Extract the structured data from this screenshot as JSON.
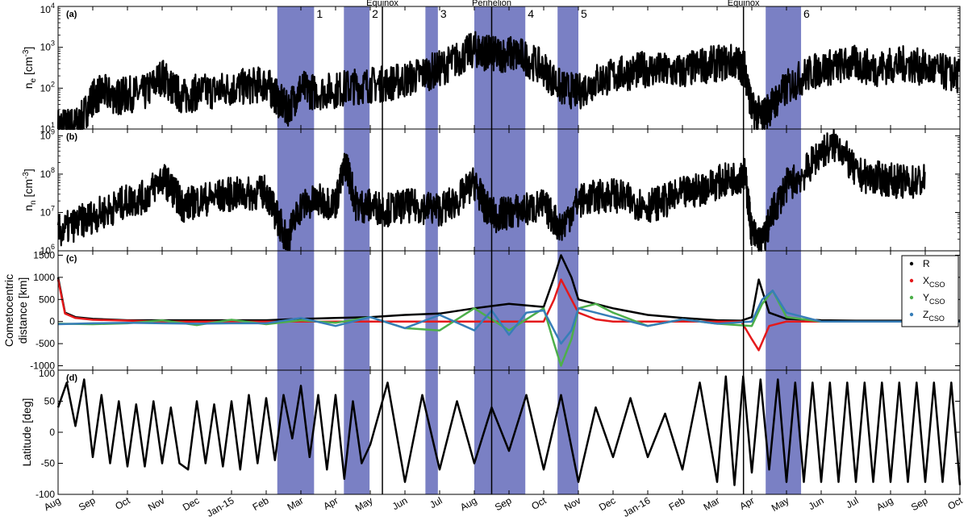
{
  "chart_data": {
    "type": "multi-panel time series",
    "x_axis": {
      "tick_labels": [
        "Aug",
        "Sep",
        "Oct",
        "Nov",
        "Dec",
        "Jan-15",
        "Feb",
        "Mar",
        "Apr",
        "May",
        "Jun",
        "Jul",
        "Aug",
        "Sep",
        "Oct",
        "Nov",
        "Dec",
        "Jan-16",
        "Feb",
        "Mar",
        "Apr",
        "May",
        "Jun",
        "Jul",
        "Aug",
        "Sep",
        "Oct"
      ],
      "range": [
        "Aug 2014",
        "Oct 2016"
      ]
    },
    "shaded_intervals": [
      {
        "label": "1",
        "start_month": 6.32,
        "end_month": 7.38
      },
      {
        "label": "2",
        "start_month": 8.24,
        "end_month": 8.98
      },
      {
        "label": "3",
        "start_month": 10.59,
        "end_month": 10.95
      },
      {
        "label": "4",
        "start_month": 12.0,
        "end_month": 13.47
      },
      {
        "label": "5",
        "start_month": 14.4,
        "end_month": 15.0
      },
      {
        "label": "6",
        "start_month": 20.4,
        "end_month": 21.42
      }
    ],
    "vertical_lines": [
      {
        "label": "Equinox",
        "month": 9.35
      },
      {
        "label": "Perihelion",
        "month": 12.5
      },
      {
        "label": "Equinox",
        "month": 19.76
      }
    ],
    "panels": [
      {
        "id": "a",
        "letter": "(a)",
        "ylabel": "n",
        "ylabel_sub": "e",
        "ylabel_unit": "[cm",
        "ylabel_sup": "-3",
        "ylabel_end": "]",
        "scale": "log",
        "ylim": [
          10,
          10000
        ],
        "tick_labels": [
          {
            "base": "10",
            "exp": "1",
            "v": 10
          },
          {
            "base": "10",
            "exp": "2",
            "v": 100
          },
          {
            "base": "10",
            "exp": "3",
            "v": 1000
          },
          {
            "base": "10",
            "exp": "4",
            "v": 10000
          }
        ],
        "series": [
          {
            "color": "#000000",
            "x_months": [
              0,
              0.3,
              0.6,
              1.0,
              1.3,
              1.7,
              2.0,
              2.5,
              3.0,
              3.3,
              3.6,
              4.0,
              4.5,
              5.0,
              5.5,
              6.0,
              6.3,
              6.6,
              7.0,
              7.4,
              8.0,
              8.5,
              9.0,
              9.5,
              10.0,
              10.5,
              11.0,
              11.5,
              12.0,
              12.3,
              12.6,
              13.0,
              13.4,
              14.0,
              14.5,
              15.0,
              15.5,
              16.0,
              16.5,
              17.0,
              17.5,
              18.0,
              18.5,
              19.0,
              19.5,
              19.8,
              20.0,
              20.3,
              20.6,
              21.0,
              21.5,
              22.0,
              22.5,
              23.0,
              23.5,
              24.0,
              24.5,
              25.0,
              25.5,
              26.0
            ],
            "values": [
              12,
              12,
              13,
              60,
              80,
              60,
              70,
              75,
              200,
              100,
              60,
              80,
              85,
              100,
              110,
              130,
              60,
              30,
              100,
              80,
              90,
              110,
              120,
              130,
              160,
              220,
              300,
              500,
              900,
              750,
              650,
              700,
              600,
              300,
              100,
              80,
              150,
              200,
              250,
              300,
              260,
              250,
              350,
              400,
              450,
              300,
              30,
              20,
              40,
              100,
              200,
              300,
              350,
              400,
              300,
              350,
              400,
              300,
              250,
              200
            ]
          }
        ]
      },
      {
        "id": "b",
        "letter": "(b)",
        "ylabel": "n",
        "ylabel_sub": "n",
        "ylabel_unit": "[cm",
        "ylabel_sup": "-3",
        "ylabel_end": "]",
        "scale": "log",
        "ylim": [
          1000000,
          1500000000
        ],
        "tick_labels": [
          {
            "base": "10",
            "exp": "6",
            "v": 1000000
          },
          {
            "base": "10",
            "exp": "7",
            "v": 10000000
          },
          {
            "base": "10",
            "exp": "8",
            "v": 100000000
          },
          {
            "base": "10",
            "exp": "9",
            "v": 1000000000
          }
        ],
        "series": [
          {
            "color": "#000000",
            "x_months": [
              0,
              0.5,
              1.0,
              1.5,
              2.0,
              2.5,
              3.0,
              3.3,
              3.6,
              4.0,
              4.5,
              5.0,
              5.5,
              6.0,
              6.3,
              6.6,
              7.0,
              7.5,
              8.0,
              8.3,
              8.6,
              9.0,
              9.5,
              10.0,
              10.5,
              11.0,
              11.5,
              12.0,
              12.3,
              12.6,
              13.0,
              13.5,
              14.0,
              14.5,
              15.0,
              15.5,
              16.0,
              16.5,
              17.0,
              17.5,
              18.0,
              18.5,
              19.0,
              19.5,
              19.8,
              20.0,
              20.3,
              20.6,
              21.0,
              21.5,
              22.0,
              22.5,
              23.0,
              23.5,
              24.0,
              24.5,
              25.0
            ],
            "values": [
              3000000,
              5000000,
              8000000,
              12000000,
              20000000,
              25000000,
              80000000,
              40000000,
              15000000,
              20000000,
              25000000,
              30000000,
              30000000,
              35000000,
              8000000,
              2000000,
              15000000,
              20000000,
              18000000,
              200000000,
              15000000,
              15000000,
              12000000,
              15000000,
              14000000,
              12000000,
              20000000,
              60000000,
              15000000,
              8000000,
              10000000,
              12000000,
              15000000,
              4000000,
              20000000,
              25000000,
              30000000,
              20000000,
              15000000,
              20000000,
              30000000,
              40000000,
              60000000,
              80000000,
              100000000,
              3000000,
              1500000,
              10000000,
              50000000,
              100000000,
              400000000,
              600000000,
              100000000,
              80000000,
              70000000,
              60000000,
              70000000
            ]
          }
        ]
      },
      {
        "id": "c",
        "letter": "(c)",
        "ylabel": "Cometocentric",
        "ylabel2": "distance [km]",
        "scale": "linear",
        "ylim": [
          -1100,
          1600
        ],
        "tick_labels": [
          {
            "text": "-1000",
            "v": -1000
          },
          {
            "text": "-500",
            "v": -500
          },
          {
            "text": "0",
            "v": 0
          },
          {
            "text": "500",
            "v": 500
          },
          {
            "text": "1000",
            "v": 1000
          },
          {
            "text": "1500",
            "v": 1500
          }
        ],
        "legend": {
          "placement": "top-right",
          "entries": [
            {
              "name": "R",
              "sub": "",
              "color": "#000000"
            },
            {
              "name": "X",
              "sub": "CSO",
              "color": "#e41a1c"
            },
            {
              "name": "Y",
              "sub": "CSO",
              "color": "#4daf4a"
            },
            {
              "name": "Z",
              "sub": "CSO",
              "color": "#377eb8"
            }
          ]
        },
        "series": [
          {
            "name": "R",
            "color": "#000000",
            "x_months": [
              0,
              0.2,
              0.5,
              1.0,
              2.0,
              3.0,
              4.0,
              5.0,
              6.0,
              7.0,
              8.0,
              9.0,
              10.0,
              11.0,
              12.0,
              12.5,
              13.0,
              14.0,
              14.3,
              14.5,
              14.8,
              15.0,
              15.5,
              16.0,
              17.0,
              18.0,
              19.0,
              19.7,
              20.0,
              20.2,
              20.5,
              21.0,
              22.0,
              23.0,
              24.0,
              25.0,
              26.0
            ],
            "values": [
              1000,
              200,
              100,
              60,
              30,
              30,
              30,
              30,
              30,
              60,
              80,
              100,
              150,
              180,
              300,
              350,
              400,
              330,
              1000,
              1500,
              1000,
              500,
              400,
              300,
              150,
              80,
              30,
              20,
              100,
              950,
              200,
              60,
              30,
              20,
              20,
              20,
              20
            ]
          },
          {
            "name": "X",
            "color": "#e41a1c",
            "x_months": [
              0,
              0.2,
              0.5,
              1.0,
              3.0,
              6.0,
              9.0,
              12.0,
              14.0,
              14.3,
              14.5,
              14.8,
              15.0,
              15.5,
              16.0,
              19.7,
              20.0,
              20.2,
              20.5,
              21.0,
              26.0
            ],
            "values": [
              950,
              180,
              80,
              40,
              0,
              0,
              0,
              0,
              0,
              500,
              950,
              500,
              200,
              50,
              0,
              0,
              -400,
              -650,
              -100,
              0,
              0
            ]
          },
          {
            "name": "Y",
            "color": "#4daf4a",
            "x_months": [
              0,
              1.0,
              2.0,
              3.0,
              4.0,
              5.0,
              6.0,
              7.0,
              8.0,
              9.0,
              10.0,
              11.0,
              12.0,
              13.0,
              14.0,
              14.3,
              14.5,
              14.8,
              15.0,
              15.5,
              16.0,
              17.0,
              18.0,
              19.0,
              20.0,
              20.3,
              20.6,
              21.0,
              22.0,
              24.0,
              26.0
            ],
            "values": [
              -50,
              -60,
              -40,
              30,
              -80,
              40,
              -60,
              30,
              -30,
              100,
              -150,
              -200,
              300,
              -200,
              300,
              -500,
              -1000,
              -400,
              300,
              400,
              200,
              -100,
              50,
              -50,
              -100,
              400,
              700,
              100,
              0,
              0,
              0
            ]
          },
          {
            "name": "Z",
            "color": "#377eb8",
            "x_months": [
              0,
              1.0,
              2.0,
              3.0,
              4.0,
              5.0,
              6.0,
              7.0,
              8.0,
              9.0,
              10.0,
              11.0,
              12.0,
              12.5,
              13.0,
              13.5,
              14.0,
              14.3,
              14.5,
              14.8,
              15.0,
              15.5,
              16.0,
              17.0,
              18.0,
              19.0,
              20.0,
              20.3,
              20.6,
              21.0,
              22.0,
              24.0,
              26.0
            ],
            "values": [
              -60,
              -40,
              -30,
              -40,
              -50,
              -40,
              -40,
              80,
              -100,
              100,
              -150,
              150,
              -200,
              250,
              -300,
              200,
              250,
              -200,
              -500,
              -200,
              300,
              200,
              100,
              -100,
              50,
              -50,
              0,
              500,
              700,
              200,
              0,
              0,
              0
            ]
          }
        ]
      },
      {
        "id": "d",
        "letter": "(d)",
        "ylabel": "Latitude [deg]",
        "scale": "linear",
        "ylim": [
          -100,
          100
        ],
        "tick_labels": [
          {
            "text": "-100",
            "v": -100
          },
          {
            "text": "-50",
            "v": -50
          },
          {
            "text": "0",
            "v": 0
          },
          {
            "text": "50",
            "v": 50
          },
          {
            "text": "100",
            "v": 100
          }
        ],
        "series": [
          {
            "color": "#000000",
            "x_months": [
              0,
              0.25,
              0.5,
              0.75,
              1.0,
              1.25,
              1.5,
              1.75,
              2.0,
              2.25,
              2.5,
              2.75,
              3.0,
              3.25,
              3.5,
              3.75,
              4.0,
              4.25,
              4.5,
              4.75,
              5.0,
              5.25,
              5.5,
              5.75,
              6.0,
              6.25,
              6.5,
              6.75,
              7.0,
              7.25,
              7.5,
              7.75,
              8.0,
              8.25,
              8.5,
              8.75,
              9.0,
              9.5,
              10.0,
              10.5,
              11.0,
              11.5,
              12.0,
              12.5,
              13.0,
              13.5,
              14.0,
              14.5,
              15.0,
              15.5,
              16.0,
              16.5,
              17.0,
              17.5,
              18.0,
              18.5,
              19.0,
              19.25,
              19.5,
              19.75,
              20.0,
              20.25,
              20.5,
              20.75,
              21.0,
              21.25,
              21.5,
              21.75,
              22.0,
              22.25,
              22.5,
              22.75,
              23.0,
              23.25,
              23.5,
              23.75,
              24.0,
              24.25,
              24.5,
              24.75,
              25.0,
              25.25,
              25.5,
              25.75,
              26.0
            ],
            "values": [
              40,
              80,
              10,
              85,
              -40,
              60,
              -50,
              50,
              -55,
              45,
              -55,
              50,
              -50,
              40,
              -50,
              -60,
              50,
              -50,
              45,
              -55,
              50,
              -60,
              60,
              -50,
              55,
              -45,
              60,
              -10,
              75,
              -40,
              60,
              -60,
              60,
              -75,
              50,
              -50,
              -20,
              80,
              -80,
              60,
              -60,
              50,
              -50,
              40,
              -30,
              60,
              -60,
              60,
              -80,
              40,
              -40,
              55,
              -40,
              30,
              -60,
              80,
              -80,
              90,
              -85,
              90,
              -65,
              85,
              -60,
              85,
              -80,
              80,
              -80,
              80,
              -80,
              80,
              -80,
              80,
              -80,
              80,
              -80,
              80,
              -80,
              80,
              -80,
              80,
              -80,
              80,
              -80,
              80,
              -85
            ]
          }
        ]
      }
    ]
  }
}
